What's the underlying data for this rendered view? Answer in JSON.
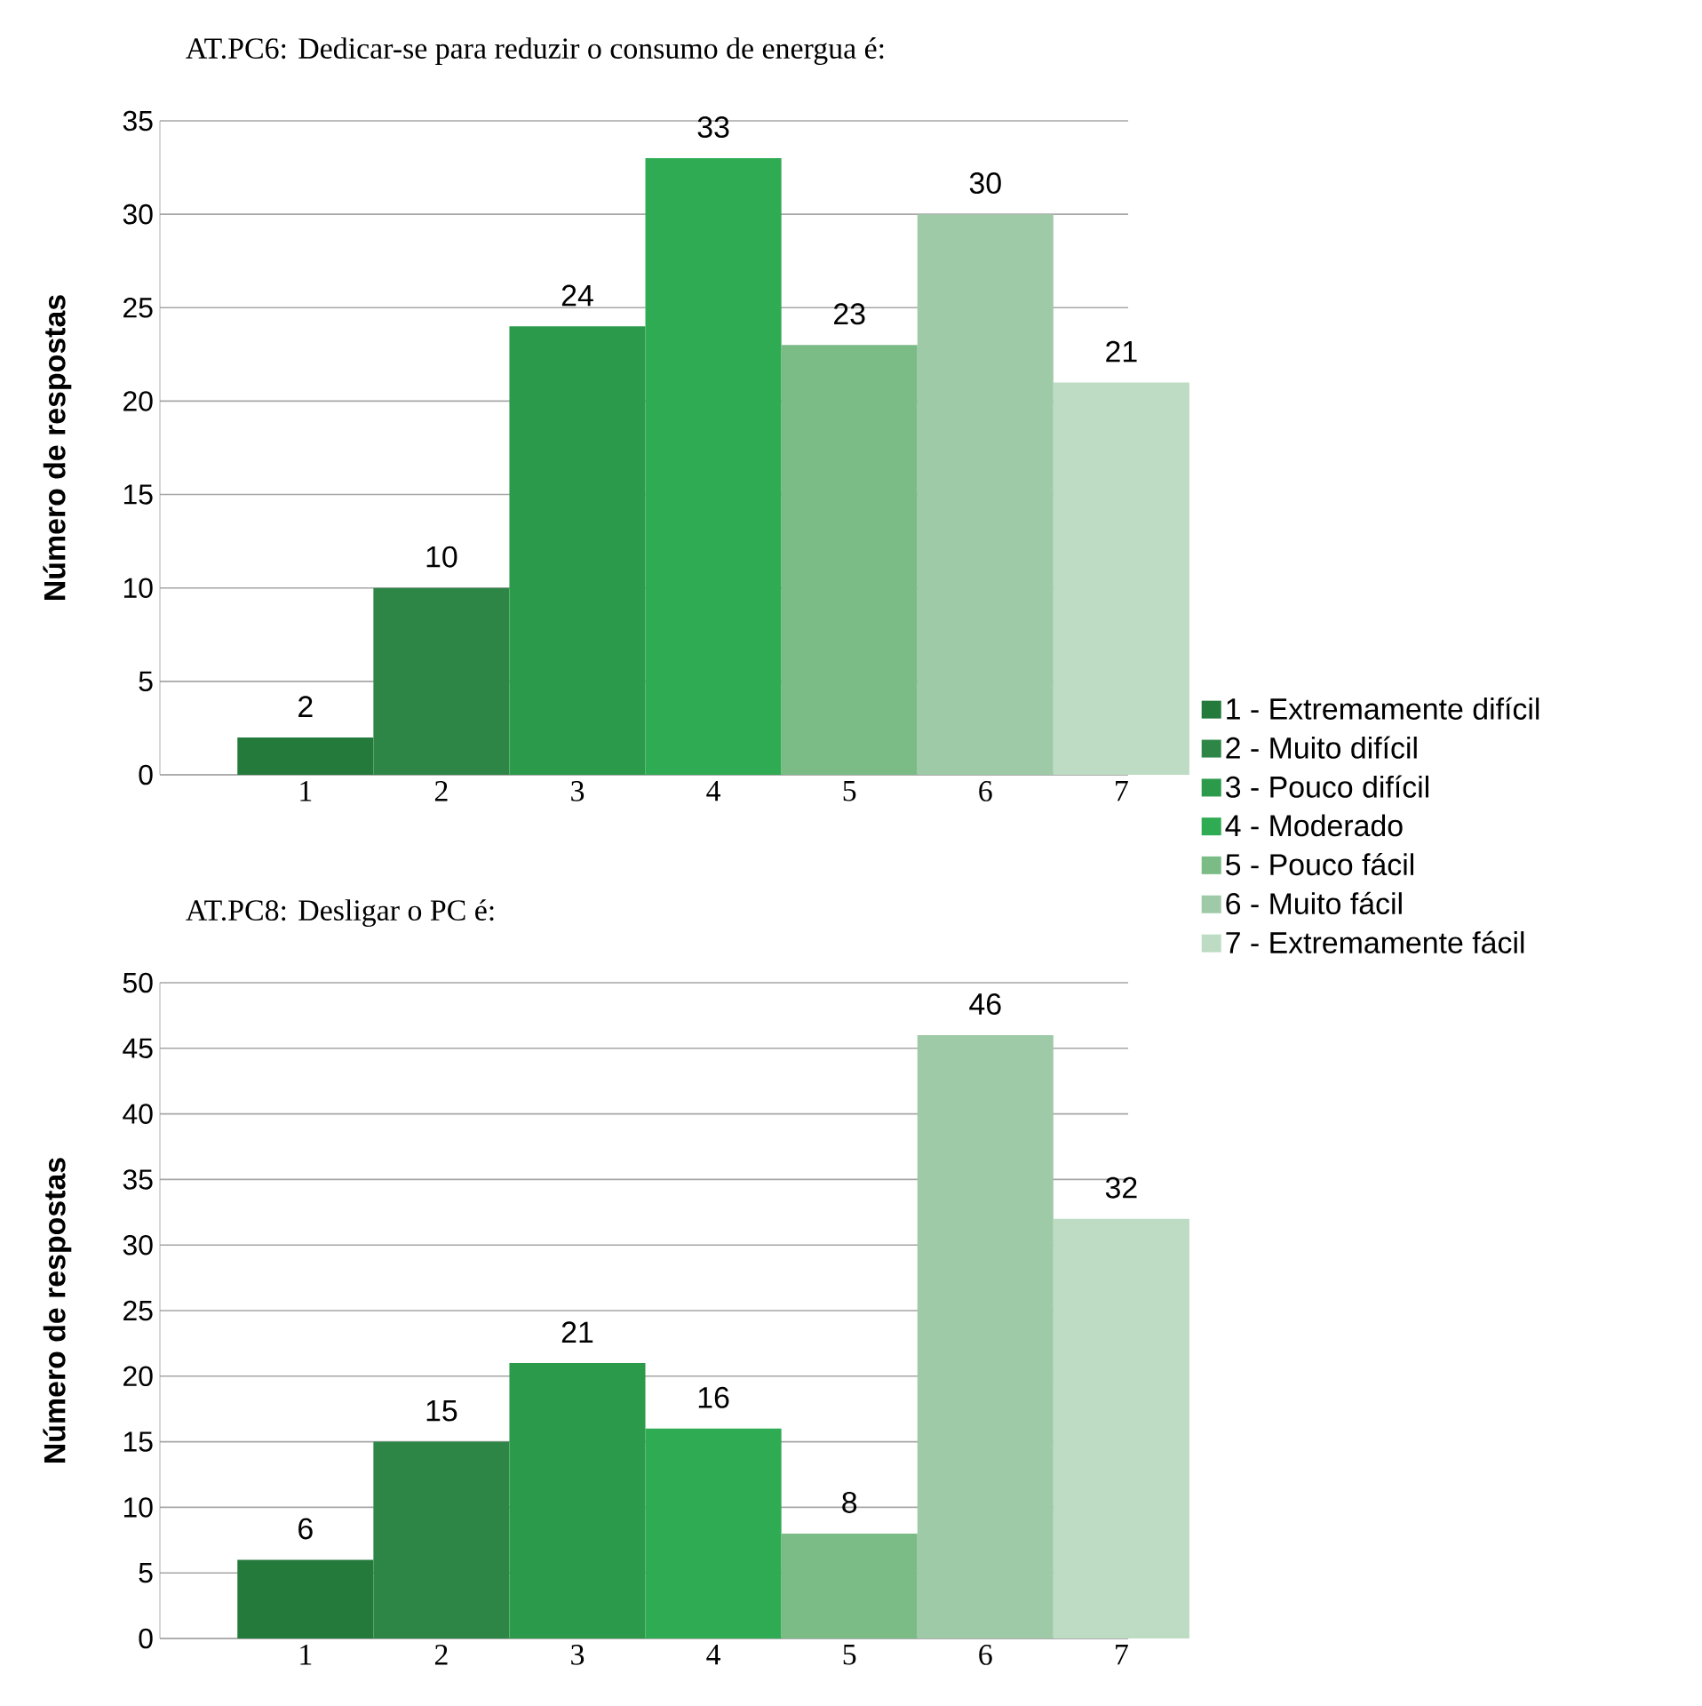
{
  "chart_data": [
    {
      "type": "bar",
      "title": "AT.PC6: Dedicar-se para reduzir o consumo de energua é:",
      "ylabel": "Número de respostas",
      "categories": [
        "1",
        "2",
        "3",
        "4",
        "5",
        "6",
        "7"
      ],
      "series": [
        {
          "name": "1 - Extremamente difícil",
          "color": "#237a3a",
          "values": [
            2,
            null,
            null,
            null,
            null,
            null,
            null
          ]
        },
        {
          "name": "2 - Muito difícil",
          "color": "#2e8646",
          "values": [
            null,
            10,
            null,
            null,
            null,
            null,
            null
          ]
        },
        {
          "name": "3 - Pouco difícil",
          "color": "#2b9a4a",
          "values": [
            null,
            null,
            24,
            null,
            null,
            null,
            null
          ]
        },
        {
          "name": "4 - Moderado",
          "color": "#2fab53",
          "values": [
            null,
            null,
            null,
            33,
            null,
            null,
            null
          ]
        },
        {
          "name": "5 - Pouco fácil",
          "color": "#7bbb86",
          "values": [
            null,
            null,
            null,
            null,
            23,
            null,
            null
          ]
        },
        {
          "name": "6 - Muito fácil",
          "color": "#9ecaa7",
          "values": [
            null,
            null,
            null,
            null,
            null,
            30,
            null
          ]
        },
        {
          "name": "7 - Extremamente fácil",
          "color": "#bddcc3",
          "values": [
            null,
            null,
            null,
            null,
            null,
            null,
            21
          ]
        }
      ],
      "ylim": [
        0,
        35
      ],
      "yticks": [
        0,
        5,
        10,
        15,
        20,
        25,
        30,
        35
      ],
      "grid": "y",
      "data_labels": true,
      "legend": "right"
    },
    {
      "type": "bar",
      "title": "AT.PC8: Desligar o PC é:",
      "ylabel": "Número de respostas",
      "categories": [
        "1",
        "2",
        "3",
        "4",
        "5",
        "6",
        "7"
      ],
      "series": [
        {
          "color": "#237a3a",
          "values": [
            6,
            null,
            null,
            null,
            null,
            null,
            null
          ]
        },
        {
          "color": "#2e8646",
          "values": [
            null,
            15,
            null,
            null,
            null,
            null,
            null
          ]
        },
        {
          "color": "#2b9a4a",
          "values": [
            null,
            null,
            21,
            null,
            null,
            null,
            null
          ]
        },
        {
          "color": "#2fab53",
          "values": [
            null,
            null,
            null,
            16,
            null,
            null,
            null
          ]
        },
        {
          "color": "#7bbb86",
          "values": [
            null,
            null,
            null,
            null,
            8,
            null,
            null
          ]
        },
        {
          "color": "#9ecaa7",
          "values": [
            null,
            null,
            null,
            null,
            null,
            46,
            null
          ]
        },
        {
          "color": "#bddcc3",
          "values": [
            null,
            null,
            null,
            null,
            null,
            null,
            32
          ]
        }
      ],
      "ylim": [
        0,
        50
      ],
      "yticks": [
        0,
        5,
        10,
        15,
        20,
        25,
        30,
        35,
        40,
        45,
        50
      ],
      "grid": "y",
      "data_labels": true
    }
  ]
}
